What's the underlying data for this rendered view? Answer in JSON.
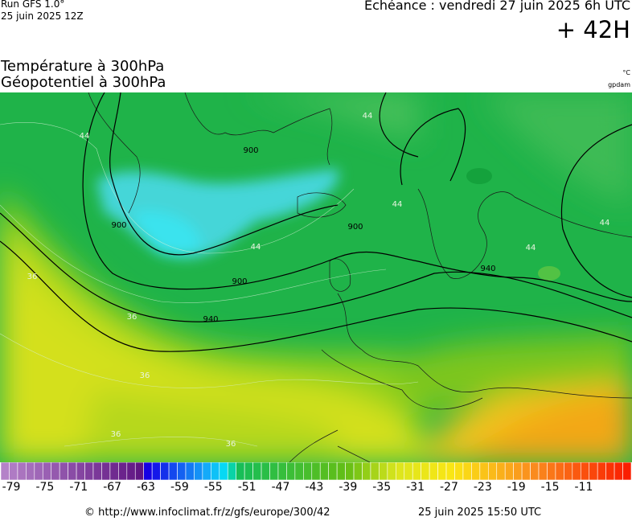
{
  "header": {
    "run": "Run GFS 1.0°",
    "run_date": "25 juin 2025 12Z",
    "valid": "Echéance : vendredi 27 juin 2025 6h UTC",
    "lead": "+ 42H",
    "title_line1": "Température à 300hPa",
    "title_line2": "Géopotentiel à 300hPa",
    "unit_temp": "°C",
    "unit_geo": "gpdam"
  },
  "map": {
    "contour_labels": [
      "900",
      "900",
      "900",
      "900",
      "940",
      "940",
      "44",
      "44",
      "44",
      "44",
      "44",
      "44",
      "36",
      "36",
      "36",
      "36",
      "36"
    ]
  },
  "colorbar": {
    "ticks": [
      -79,
      -75,
      -71,
      -67,
      -63,
      -59,
      -55,
      -51,
      -47,
      -43,
      -39,
      -35,
      -31,
      -27,
      -23,
      -19,
      -15,
      -11
    ]
  },
  "footer": {
    "source": "© http://www.infoclimat.fr/z/gfs/europe/300/42",
    "timestamp": "25 juin 2025 15:50 UTC"
  }
}
